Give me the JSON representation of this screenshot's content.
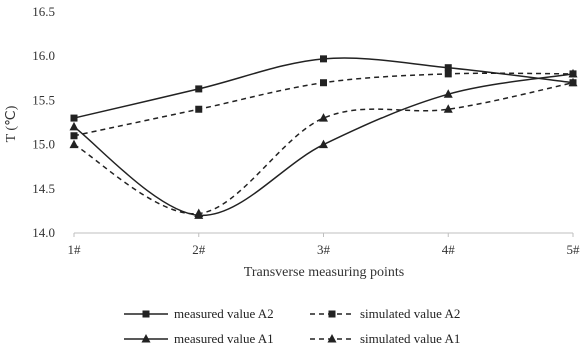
{
  "chart_data": {
    "type": "line",
    "title": "",
    "xlabel": "Transverse measuring points",
    "ylabel": "T (℃)",
    "categories": [
      "1#",
      "2#",
      "3#",
      "4#",
      "5#"
    ],
    "ylim": [
      14.0,
      16.5
    ],
    "yticks": [
      "14.0",
      "14.5",
      "15.0",
      "15.5",
      "16.0",
      "16.5"
    ],
    "grid": "none",
    "legend_position": "bottom",
    "series": [
      {
        "name": "measured value A2",
        "values": [
          15.3,
          15.63,
          15.97,
          15.87,
          15.7
        ],
        "marker": "square",
        "line": "solid",
        "color": "#222222"
      },
      {
        "name": "simulated value A2",
        "values": [
          15.1,
          15.4,
          15.7,
          15.8,
          15.8
        ],
        "marker": "square",
        "line": "dashed",
        "color": "#222222"
      },
      {
        "name": "measured value A1",
        "values": [
          15.2,
          14.2,
          15.0,
          15.57,
          15.8
        ],
        "marker": "triangle",
        "line": "solid",
        "color": "#222222"
      },
      {
        "name": "simulated value A1",
        "values": [
          15.0,
          14.22,
          15.3,
          15.4,
          15.7
        ],
        "marker": "triangle",
        "line": "dashed",
        "color": "#222222"
      }
    ]
  }
}
